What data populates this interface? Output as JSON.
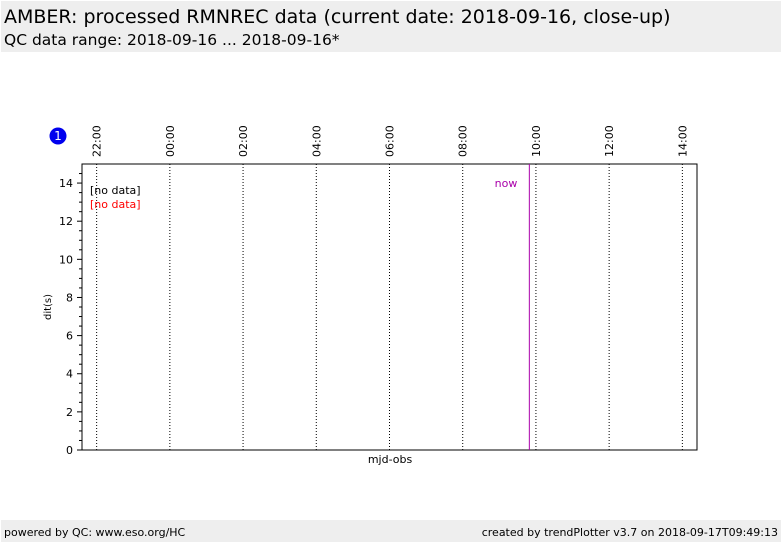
{
  "header": {
    "title": "AMBER: processed RMNREC data (current date: 2018-09-16, close-up)",
    "subtitle": "QC data range: 2018-09-16 ... 2018-09-16*"
  },
  "chart_data": {
    "type": "scatter",
    "badge": "1",
    "xlabel": "mjd-obs",
    "ylabel": "dit(s)",
    "x": [],
    "series": [
      {
        "name": "[no data]",
        "color": "#000000",
        "values": []
      },
      {
        "name": "[no data]",
        "color": "#ff0000",
        "values": []
      }
    ],
    "xlim": [
      21.6,
      38.4
    ],
    "xticks": [
      {
        "value": 22,
        "label": "22:00"
      },
      {
        "value": 24,
        "label": "00:00"
      },
      {
        "value": 26,
        "label": "02:00"
      },
      {
        "value": 28,
        "label": "04:00"
      },
      {
        "value": 30,
        "label": "06:00"
      },
      {
        "value": 32,
        "label": "08:00"
      },
      {
        "value": 34,
        "label": "10:00"
      },
      {
        "value": 36,
        "label": "12:00"
      },
      {
        "value": 38,
        "label": "14:00"
      }
    ],
    "ylim": [
      0,
      15
    ],
    "yticks": [
      0,
      2,
      4,
      6,
      8,
      10,
      12,
      14
    ],
    "grid": true,
    "now": {
      "x": 33.82,
      "label": "now",
      "color": "#aa00aa"
    }
  },
  "footer": {
    "left": "powered by QC: www.eso.org/HC",
    "right": "created by trendPlotter v3.7 on 2018-09-17T09:49:13"
  }
}
